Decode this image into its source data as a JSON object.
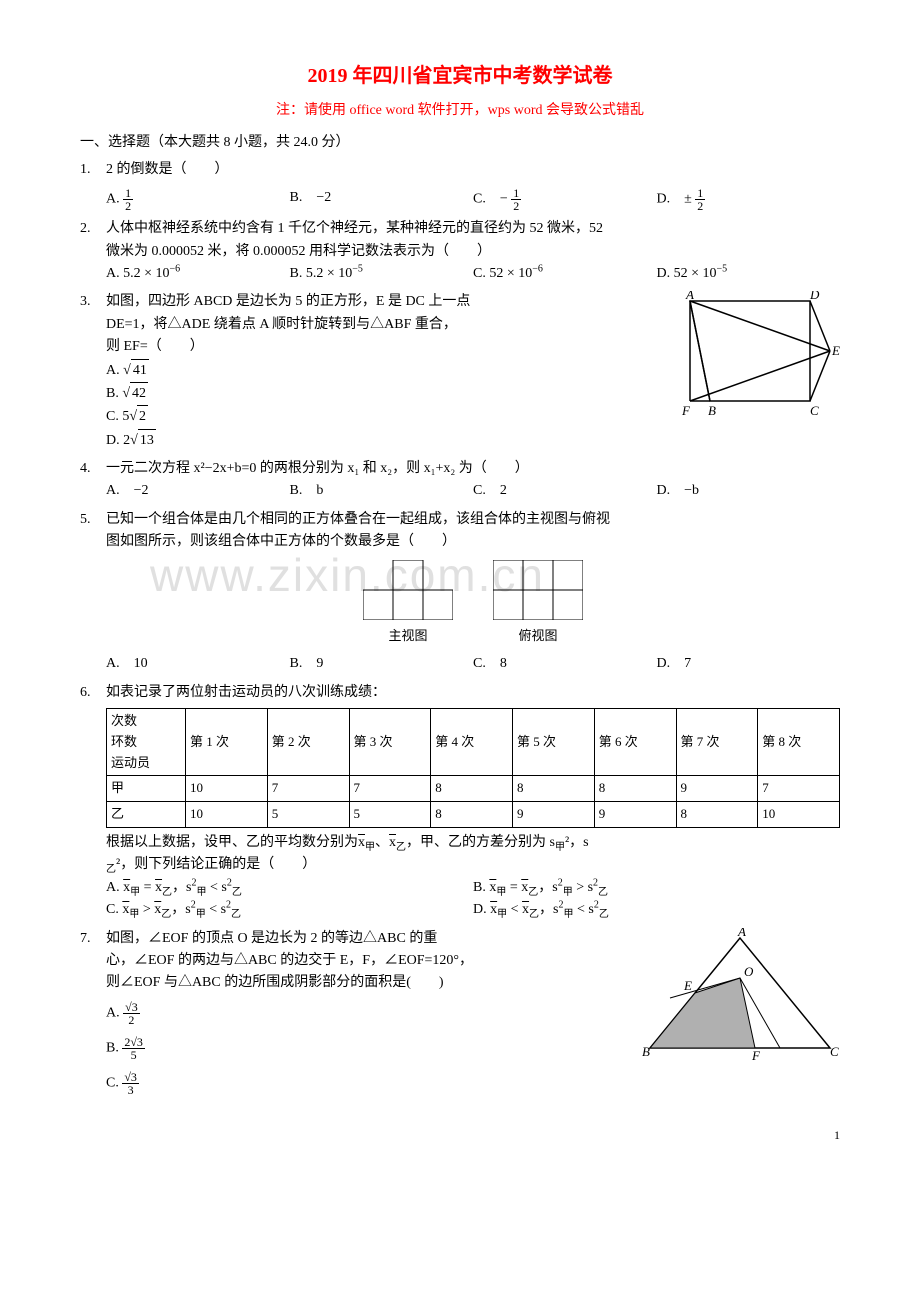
{
  "title": "2019 年四川省宜宾市中考数学试卷",
  "note": "注：请使用 office word 软件打开，wps word 会导致公式错乱",
  "section1": "一、选择题（本大题共 8 小题，共 24.0 分）",
  "q1": {
    "num": "1.",
    "text": "2 的倒数是（　　）",
    "A": "A.",
    "B": "B.　−2",
    "C": "C.　−",
    "D": "D.　±"
  },
  "q2": {
    "num": "2.",
    "text1": "人体中枢神经系统中约含有 1 千亿个神经元，某种神经元的直径约为 52 微米，52",
    "text2": "微米为 0.000052 米，将 0.000052 用科学记数法表示为（　　）",
    "A": "A. 5.2 × 10",
    "Aexp": "−6",
    "B": "B. 5.2 × 10",
    "Bexp": "−5",
    "C": "C. 52 × 10",
    "Cexp": "−6",
    "D": "D. 52 × 10",
    "Dexp": "−5"
  },
  "q3": {
    "num": "3.",
    "l1": "如图，四边形 ABCD 是边长为 5 的正方形，E 是 DC 上一点",
    "l2": "DE=1，将△ADE 绕着点 A 顺时针旋转到与△ABF 重合，",
    "l3": "则 EF=（　　）",
    "A": "A. ",
    "B": "B. ",
    "C": "C. 5",
    "D": "D. 2",
    "radA": "41",
    "radB": "42",
    "radC": "2",
    "radD": "13",
    "fig": {
      "A": "A",
      "B": "B",
      "C": "C",
      "D": "D",
      "E": "E",
      "F": "F"
    }
  },
  "q4": {
    "num": "4.",
    "text": "一元二次方程 x²−2x+b=0 的两根分别为 x₁ 和 x₂，则 x₁+x₂ 为（　　）",
    "A": "A.　−2",
    "B": "B.　b",
    "C": "C.　2",
    "D": "D.　−b"
  },
  "q5": {
    "num": "5.",
    "l1": "已知一个组合体是由几个相同的正方体叠合在一起组成，该组合体的主视图与俯视",
    "l2": "图如图所示，则该组合体中正方体的个数最多是（　　）",
    "mainview": "主视图",
    "topview": "俯视图",
    "A": "A.　10",
    "B": "B.　9",
    "C": "C.　8",
    "D": "D.　7"
  },
  "q6": {
    "num": "6.",
    "l1": "如表记录了两位射击运动员的八次训练成绩：",
    "head": [
      "次数\n环数\n运动员",
      "第 1 次",
      "第 2 次",
      "第 3 次",
      "第 4 次",
      "第 5 次",
      "第 6 次",
      "第 7 次",
      "第 8 次"
    ],
    "rowA": [
      "甲",
      "10",
      "7",
      "7",
      "8",
      "8",
      "8",
      "9",
      "7"
    ],
    "rowB": [
      "乙",
      "10",
      "5",
      "5",
      "8",
      "9",
      "9",
      "8",
      "10"
    ],
    "l2a": "根据以上数据，设甲、乙的平均数分别为",
    "l2b": "、",
    "l2c": "，甲、乙的方差分别为 s",
    "l2d": "²，s",
    "l3": "²，则下列结论正确的是（　　）",
    "sub1": "甲",
    "sub2": "乙",
    "A": "A. ",
    "B": "B. ",
    "C": "C. ",
    "D": "D. "
  },
  "q7": {
    "num": "7.",
    "l1": "如图，∠EOF 的顶点 O 是边长为 2 的等边△ABC 的重",
    "l2": "心，∠EOF 的两边与△ABC 的边交于 E，F，∠EOF=120°，",
    "l3": "则∠EOF 与△ABC 的边所围成阴影部分的面积是(　　)",
    "A": "A. ",
    "B": "B. ",
    "C": "C. ",
    "fig": {
      "A": "A",
      "B": "B",
      "C": "C",
      "E": "E",
      "F": "F",
      "O": "O"
    }
  },
  "watermark": "www.zixin.com.cn",
  "pagenum": "1"
}
